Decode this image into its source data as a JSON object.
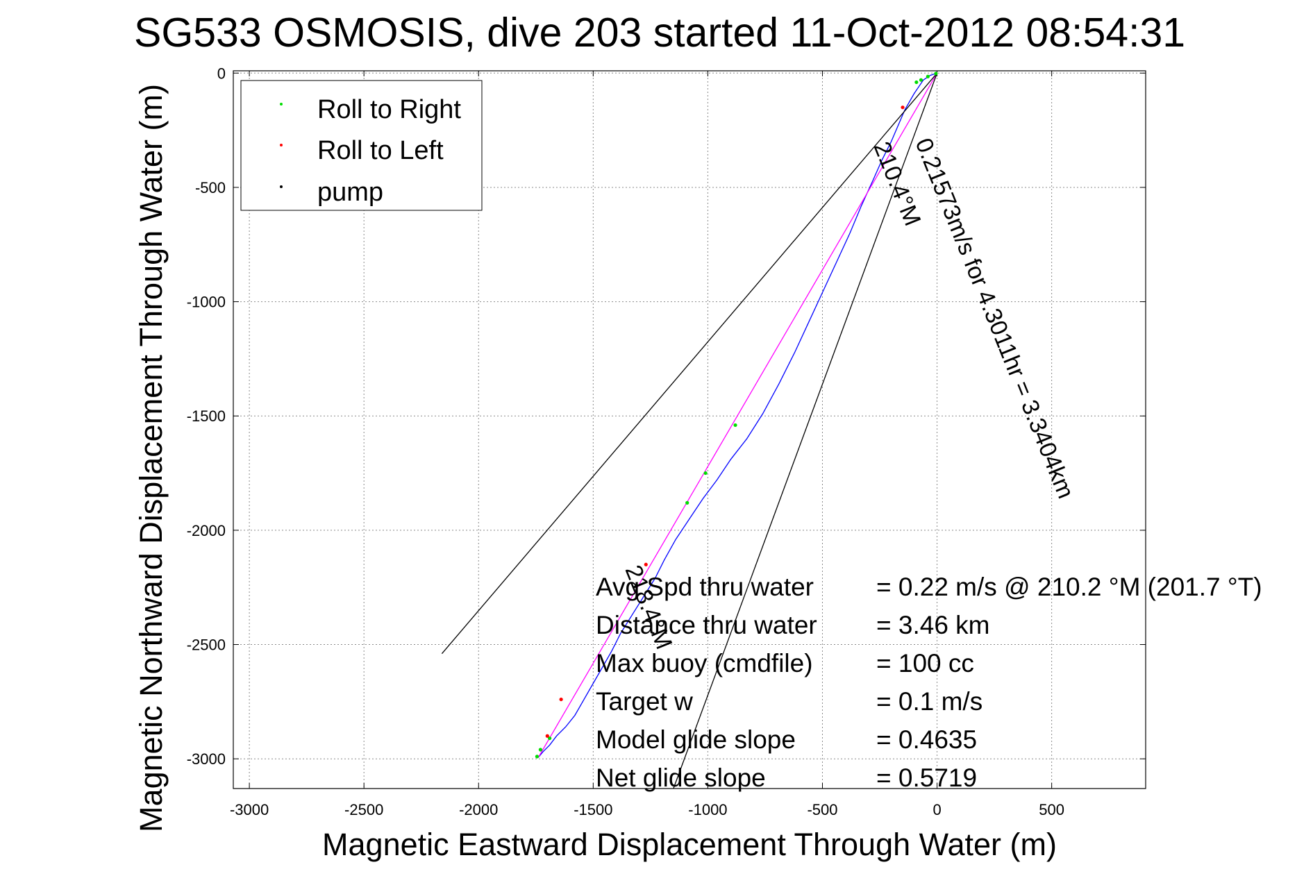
{
  "chart_data": {
    "type": "line",
    "title": "SG533 OSMOSIS, dive 203 started 11-Oct-2012 08:54:31",
    "xlabel": "Magnetic Eastward Displacement Through Water (m)",
    "ylabel": "Magnetic Northward Displacement Through Water (m)",
    "xlim": [
      -3070,
      910
    ],
    "ylim": [
      -3130,
      10
    ],
    "x_ticks": [
      -3000,
      -2500,
      -2000,
      -1500,
      -1000,
      -500,
      0,
      500
    ],
    "x_tick_labels": [
      "-3000",
      "-2500",
      "-2000",
      "-1500",
      "-1000",
      "-500",
      "0",
      "500"
    ],
    "y_ticks": [
      0,
      -500,
      -1000,
      -1500,
      -2000,
      -2500,
      -3000
    ],
    "y_tick_labels": [
      "0",
      "-500",
      "-1000",
      "-1500",
      "-2000",
      "-2500",
      "-3000"
    ],
    "grid": true,
    "legend": {
      "placement": "top-left",
      "entries": [
        {
          "label": "Roll to Right",
          "color": "#00dd00"
        },
        {
          "label": "Roll to Left",
          "color": "#ff0000"
        },
        {
          "label": "pump",
          "color": "#000000"
        }
      ]
    },
    "series": [
      {
        "name": "track",
        "color": "#0000ff",
        "x": [
          0,
          -30,
          -60,
          -100,
          -140,
          -170,
          -200,
          -240,
          -280,
          -330,
          -380,
          -440,
          -500,
          -560,
          -620,
          -690,
          -760,
          -830,
          -900,
          -960,
          -1020,
          -1080,
          -1140,
          -1190,
          -1230,
          -1280,
          -1330,
          -1380,
          -1420,
          -1460,
          -1500,
          -1540,
          -1580,
          -1620,
          -1660,
          -1690,
          -1720,
          -1740
        ],
        "y": [
          0,
          -10,
          -30,
          -90,
          -160,
          -230,
          -300,
          -380,
          -470,
          -580,
          -700,
          -830,
          -960,
          -1090,
          -1220,
          -1360,
          -1490,
          -1600,
          -1690,
          -1780,
          -1860,
          -1950,
          -2040,
          -2130,
          -2210,
          -2290,
          -2370,
          -2450,
          -2530,
          -2600,
          -2670,
          -2740,
          -2810,
          -2860,
          -2900,
          -2940,
          -2970,
          -2995
        ]
      },
      {
        "name": "average-track",
        "color": "#ff00ff",
        "x": [
          0,
          -1740
        ],
        "y": [
          0,
          -2995
        ]
      },
      {
        "name": "bearing-line-210.4",
        "color": "#000000",
        "x": [
          0,
          -1150
        ],
        "y": [
          0,
          -3130
        ]
      },
      {
        "name": "bearing-line-218.4",
        "color": "#000000",
        "x": [
          0,
          -2160
        ],
        "y": [
          0,
          -2540
        ]
      },
      {
        "name": "Roll to Right",
        "type": "scatter",
        "color": "#00dd00",
        "x": [
          -5,
          -40,
          -70,
          -90,
          -880,
          -1010,
          -1090,
          -1690,
          -1730,
          -1745
        ],
        "y": [
          -2,
          -15,
          -30,
          -40,
          -1540,
          -1750,
          -1880,
          -2910,
          -2960,
          -2990
        ]
      },
      {
        "name": "Roll to Left",
        "type": "scatter",
        "color": "#ff0000",
        "x": [
          -150,
          -1270,
          -1640,
          -1700
        ],
        "y": [
          -150,
          -2150,
          -2740,
          -2900
        ]
      }
    ],
    "annotations": [
      {
        "text": "0.21573m/s for 4.3011hr = 3.3404km",
        "rotation": 68
      },
      {
        "text": "210.4°M",
        "rotation": 68
      },
      {
        "text": "218.4°M",
        "rotation": 68
      }
    ],
    "stats": [
      {
        "label": "Avg Spd thru water",
        "value": "=  0.22 m/s @ 210.2 °M (201.7 °T)"
      },
      {
        "label": "Distance thru water",
        "value": "=  3.46 km"
      },
      {
        "label": "Max buoy (cmdfile)",
        "value": "= 100 cc"
      },
      {
        "label": "Target w",
        "value": "= 0.1 m/s"
      },
      {
        "label": "Model glide slope",
        "value": "= 0.4635"
      },
      {
        "label": "Net glide slope",
        "value": "= 0.5719"
      }
    ]
  }
}
